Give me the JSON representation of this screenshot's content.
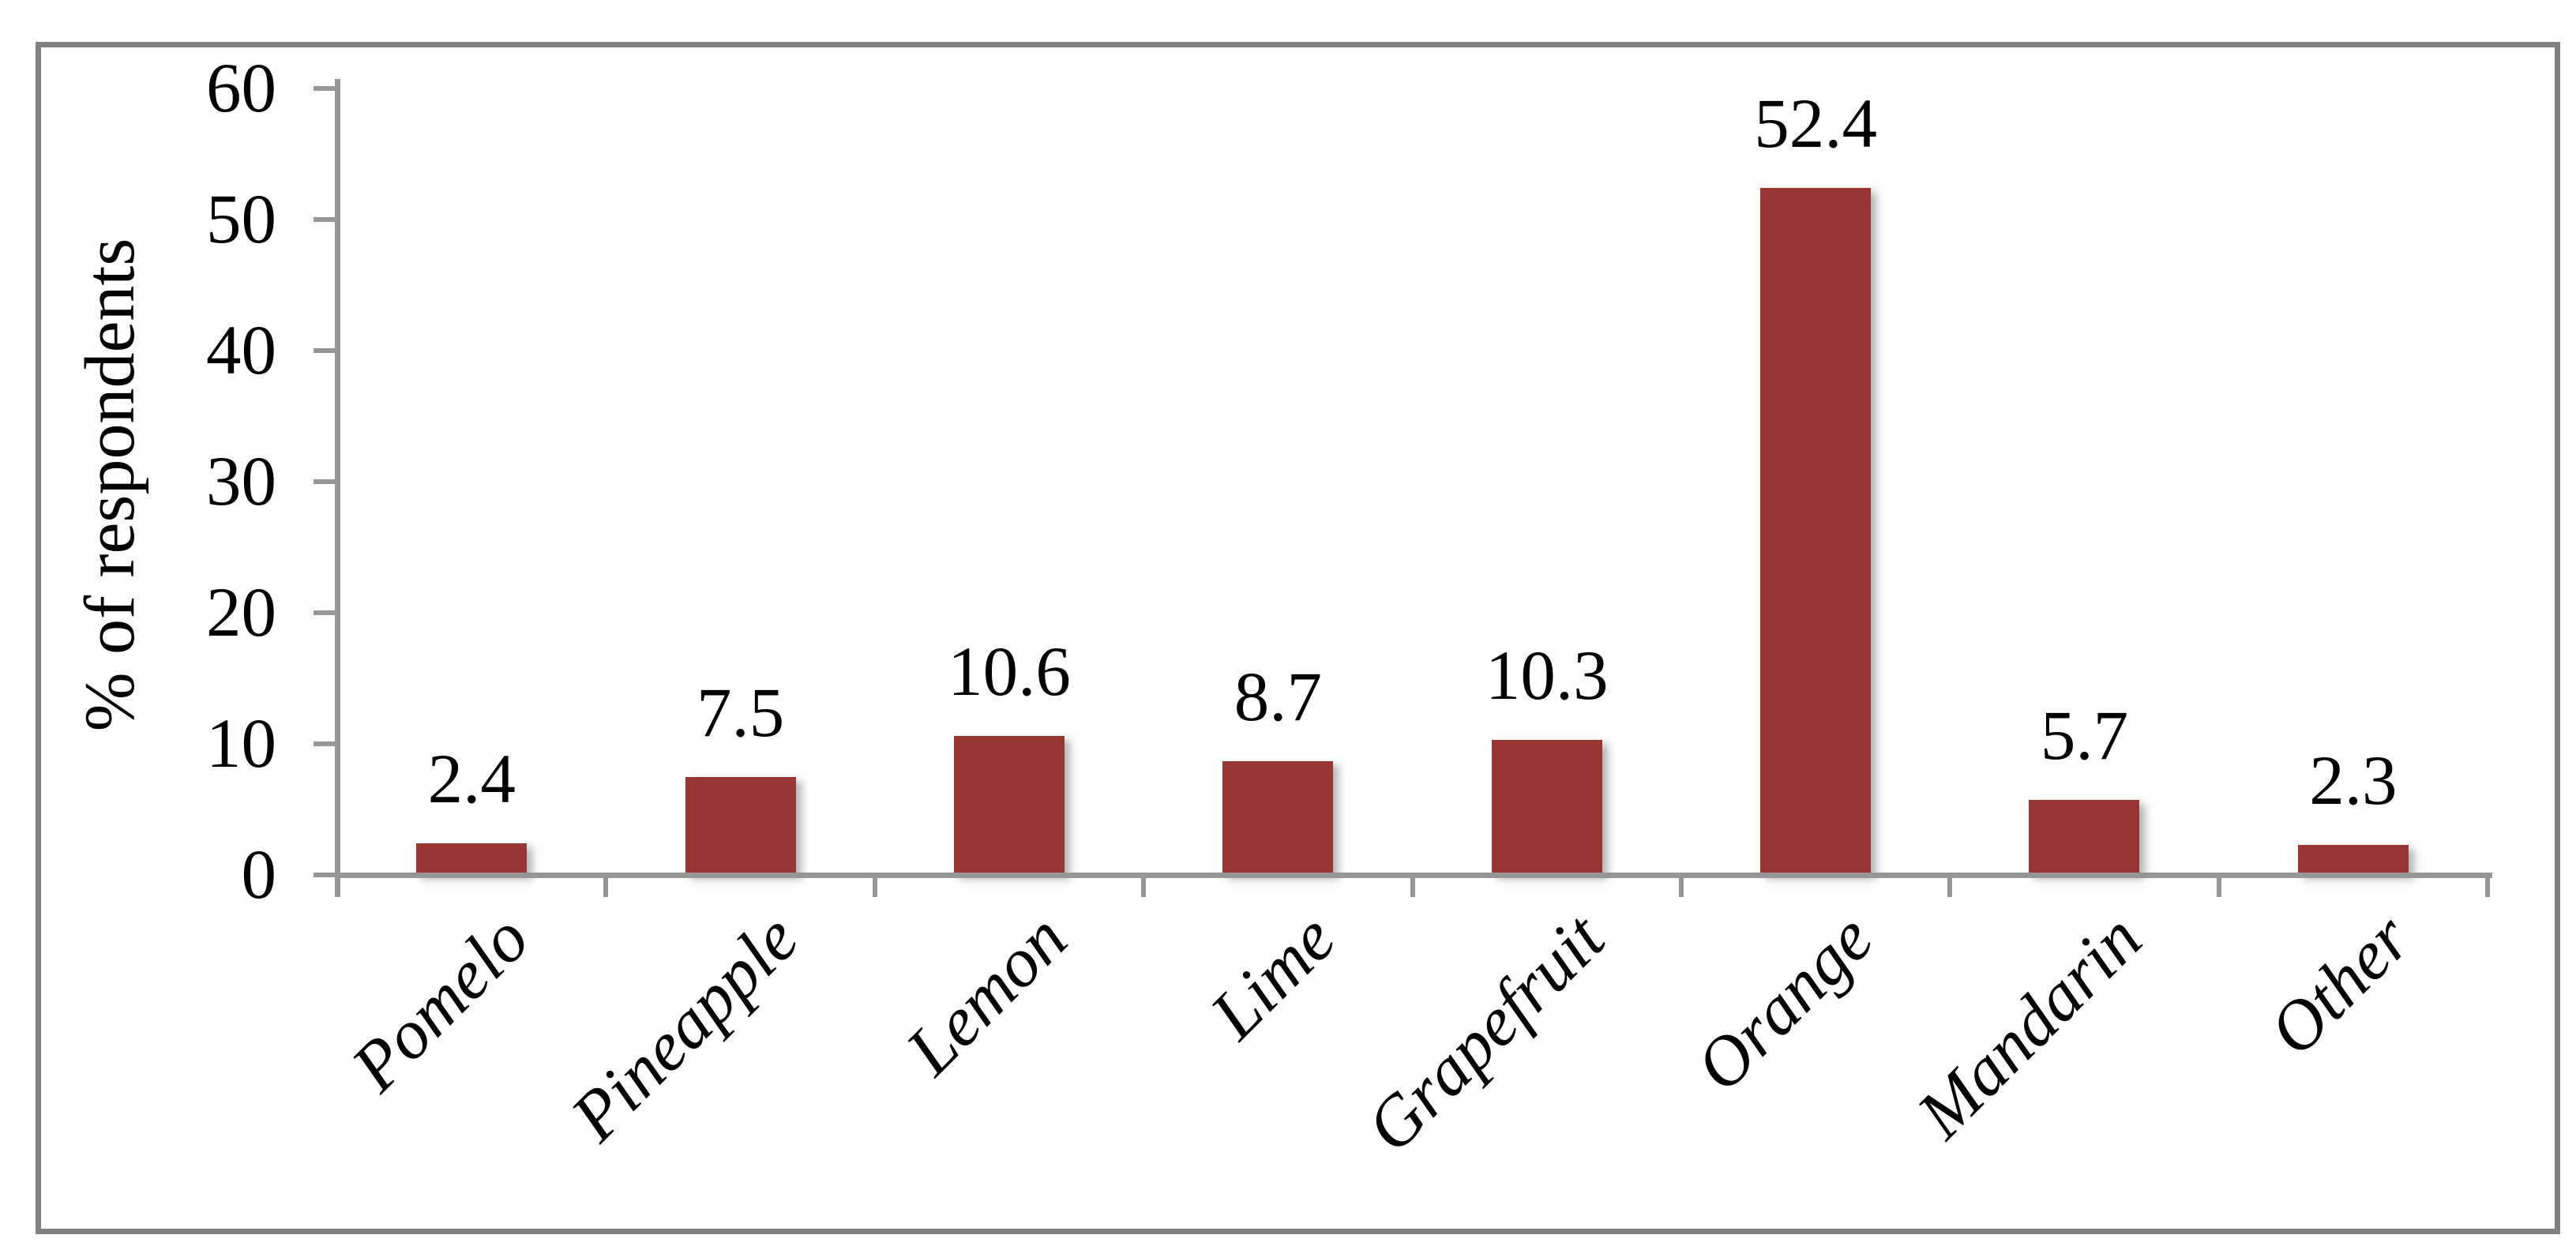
{
  "figure": {
    "background_color": "#ffffff",
    "border_color": "#7f7f7f",
    "axis_color": "#969696"
  },
  "chart_data": {
    "type": "bar",
    "title": "",
    "xlabel": "",
    "ylabel": "% of respondents",
    "categories": [
      "Pomelo",
      "Pineapple",
      "Lemon",
      "Lime",
      "Grapefruit",
      "Orange",
      "Mandarin",
      "Other"
    ],
    "values": [
      2.4,
      7.5,
      10.6,
      8.7,
      10.3,
      52.4,
      5.7,
      2.3
    ],
    "value_labels": [
      "2.4",
      "7.5",
      "10.6",
      "8.7",
      "10.3",
      "52.4",
      "5.7",
      "2.3"
    ],
    "ylim": [
      0,
      60
    ],
    "yticks": [
      0,
      10,
      20,
      30,
      40,
      50,
      60
    ],
    "bar_color": "#963734",
    "label_color": "#000000",
    "grid": false,
    "legend_position": "none",
    "category_label_rotation_deg": 45,
    "category_label_style": "italic"
  }
}
